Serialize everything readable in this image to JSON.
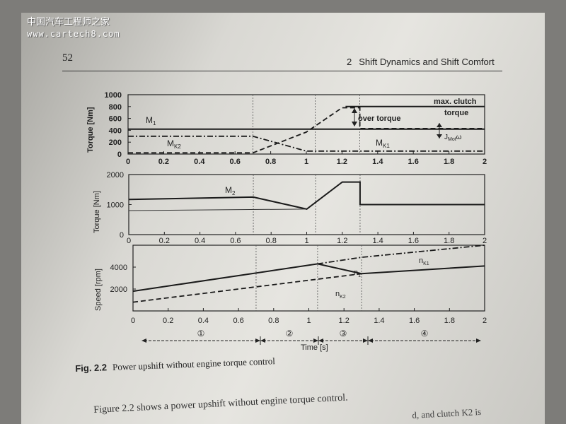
{
  "watermark": {
    "cn": "中国汽车工程师之家",
    "url": "www.cartech8.com"
  },
  "header": {
    "page_number": "52",
    "chapter_number": "2",
    "chapter_title": "Shift Dynamics and Shift Comfort"
  },
  "chart_data": [
    {
      "type": "line",
      "ylabel": "Torque [Nm]",
      "y_ticks": [
        "0",
        "200",
        "400",
        "600",
        "800",
        "1000"
      ],
      "x_ticks": [
        "0",
        "0.2",
        "0.4",
        "0.6",
        "0.8",
        "1",
        "1.2",
        "1.4",
        "1.6",
        "1.8",
        "2"
      ],
      "xlim": [
        0,
        2
      ],
      "ylim": [
        0,
        1000
      ],
      "series": [
        {
          "name": "M1",
          "style": "solid",
          "points": [
            [
              0,
              420
            ],
            [
              2,
              420
            ]
          ]
        },
        {
          "name": "MK2",
          "style": "dashdot",
          "points": [
            [
              0,
              300
            ],
            [
              0.7,
              300
            ],
            [
              1.0,
              50
            ],
            [
              2,
              50
            ]
          ]
        },
        {
          "name": "MK1",
          "style": "dashed",
          "points": [
            [
              0,
              20
            ],
            [
              0.7,
              20
            ],
            [
              1.0,
              370
            ],
            [
              1.2,
              780
            ],
            [
              1.3,
              780
            ],
            [
              1.3,
              430
            ],
            [
              2,
              430
            ]
          ]
        },
        {
          "name": "max. clutch torque",
          "style": "solid",
          "points": [
            [
              1.22,
              800
            ],
            [
              2,
              800
            ]
          ]
        }
      ],
      "labels": {
        "m1": "M",
        "m1_sub": "1",
        "mk2": "M",
        "mk2_sub": "K2",
        "mk1": "M",
        "mk1_sub": "K1",
        "max_clutch": "max. clutch",
        "torque_word": "torque",
        "over_torque": "over torque",
        "jmot": "J",
        "jmot_sub": "Mot",
        "omega": "ω"
      }
    },
    {
      "type": "line",
      "ylabel": "Torque [Nm]",
      "y_ticks": [
        "0",
        "1000",
        "2000"
      ],
      "x_ticks": [
        "0",
        "0.2",
        "0.4",
        "0.6",
        "0.8",
        "1",
        "1.2",
        "1.4",
        "1.6",
        "1.8",
        "2"
      ],
      "xlim": [
        0,
        2
      ],
      "ylim": [
        0,
        2000
      ],
      "series": [
        {
          "name": "M2",
          "style": "solid",
          "points": [
            [
              0,
              1170
            ],
            [
              0.7,
              1250
            ],
            [
              1.0,
              850
            ],
            [
              1.2,
              1750
            ],
            [
              1.3,
              1750
            ],
            [
              1.3,
              1000
            ],
            [
              2,
              1000
            ]
          ]
        }
      ],
      "labels": {
        "m2": "M",
        "m2_sub": "2"
      }
    },
    {
      "type": "line",
      "ylabel": "Speed [rpm]",
      "y_ticks": [
        "2000",
        "4000"
      ],
      "x_ticks": [
        "0",
        "0.2",
        "0.4",
        "0.6",
        "0.8",
        "1",
        "1.2",
        "1.4",
        "1.6",
        "1.8",
        "2"
      ],
      "xlim": [
        0,
        2
      ],
      "ylim": [
        0,
        6000
      ],
      "series": [
        {
          "name": "n1",
          "style": "solid",
          "points": [
            [
              0,
              1800
            ],
            [
              1.05,
              4300
            ],
            [
              1.3,
              3400
            ],
            [
              2,
              4100
            ]
          ]
        },
        {
          "name": "nK2",
          "style": "dashed",
          "points": [
            [
              0,
              800
            ],
            [
              1.3,
              3400
            ]
          ]
        },
        {
          "name": "nK1",
          "style": "dashdot",
          "points": [
            [
              1.05,
              4300
            ],
            [
              1.3,
              4900
            ],
            [
              2,
              6000
            ]
          ]
        }
      ],
      "labels": {
        "n1": "n",
        "n1_sub": "1",
        "nk1": "n",
        "nk1_sub": "K1",
        "nk2": "n",
        "nk2_sub": "K2"
      }
    }
  ],
  "phases": {
    "items": [
      "①",
      "②",
      "③",
      "④"
    ],
    "xlabel": "Time [s]"
  },
  "caption": {
    "label": "Fig. 2.2",
    "text": "Power upshift without engine torque control"
  },
  "body": {
    "line1": "Figure 2.2 shows a power upshift without engine torque control.",
    "line2": "d, and clutch K2 is"
  }
}
